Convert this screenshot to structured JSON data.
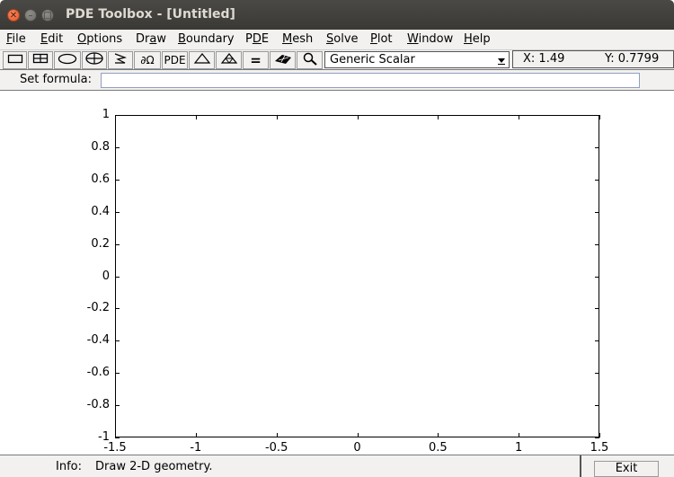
{
  "window": {
    "title": "PDE Toolbox - [Untitled]"
  },
  "menubar": {
    "items": [
      {
        "mn": "F",
        "rest": "ile"
      },
      {
        "mn": "E",
        "rest": "dit"
      },
      {
        "mn": "O",
        "rest": "ptions"
      },
      {
        "pre": "Dr",
        "mn": "a",
        "rest": "w"
      },
      {
        "mn": "B",
        "rest": "oundary"
      },
      {
        "pre": "P",
        "mn": "D",
        "rest": "E"
      },
      {
        "mn": "M",
        "rest": "esh"
      },
      {
        "mn": "S",
        "rest": "olve"
      },
      {
        "mn": "P",
        "rest": "lot"
      },
      {
        "mn": "W",
        "rest": "indow"
      },
      {
        "mn": "H",
        "rest": "elp"
      }
    ]
  },
  "toolbar": {
    "buttons": [
      {
        "icon": "rectangle-icon"
      },
      {
        "icon": "centered-rectangle-icon"
      },
      {
        "icon": "ellipse-icon"
      },
      {
        "icon": "centered-ellipse-icon"
      },
      {
        "icon": "polygon-icon"
      },
      {
        "icon": "boundary-mode-icon",
        "label": "∂Ω"
      },
      {
        "icon": "pde-spec-icon",
        "label": "PDE"
      },
      {
        "icon": "init-mesh-icon"
      },
      {
        "icon": "refine-mesh-icon"
      },
      {
        "icon": "solve-icon",
        "label": "="
      },
      {
        "icon": "plot-icon"
      },
      {
        "icon": "zoom-icon"
      }
    ],
    "app_mode": "Generic Scalar",
    "x_readout": "X: 1.49",
    "y_readout": "Y: 0.7799"
  },
  "formula": {
    "label": "Set formula:",
    "value": ""
  },
  "axes": {
    "y_ticks": [
      "1",
      "0.8",
      "0.6",
      "0.4",
      "0.2",
      "0",
      "-0.2",
      "-0.4",
      "-0.6",
      "-0.8",
      "-1"
    ],
    "x_ticks": [
      "-1.5",
      "-1",
      "-0.5",
      "0",
      "0.5",
      "1",
      "1.5"
    ],
    "xlim": [
      -1.5,
      1.5
    ],
    "ylim": [
      -1,
      1
    ]
  },
  "status": {
    "label": "Info:",
    "message": "Draw 2-D geometry.",
    "exit_label": "Exit"
  },
  "colors": {
    "titlebar": "#3c3b37",
    "close": "#e95420",
    "panel": "#f2f1f0"
  }
}
